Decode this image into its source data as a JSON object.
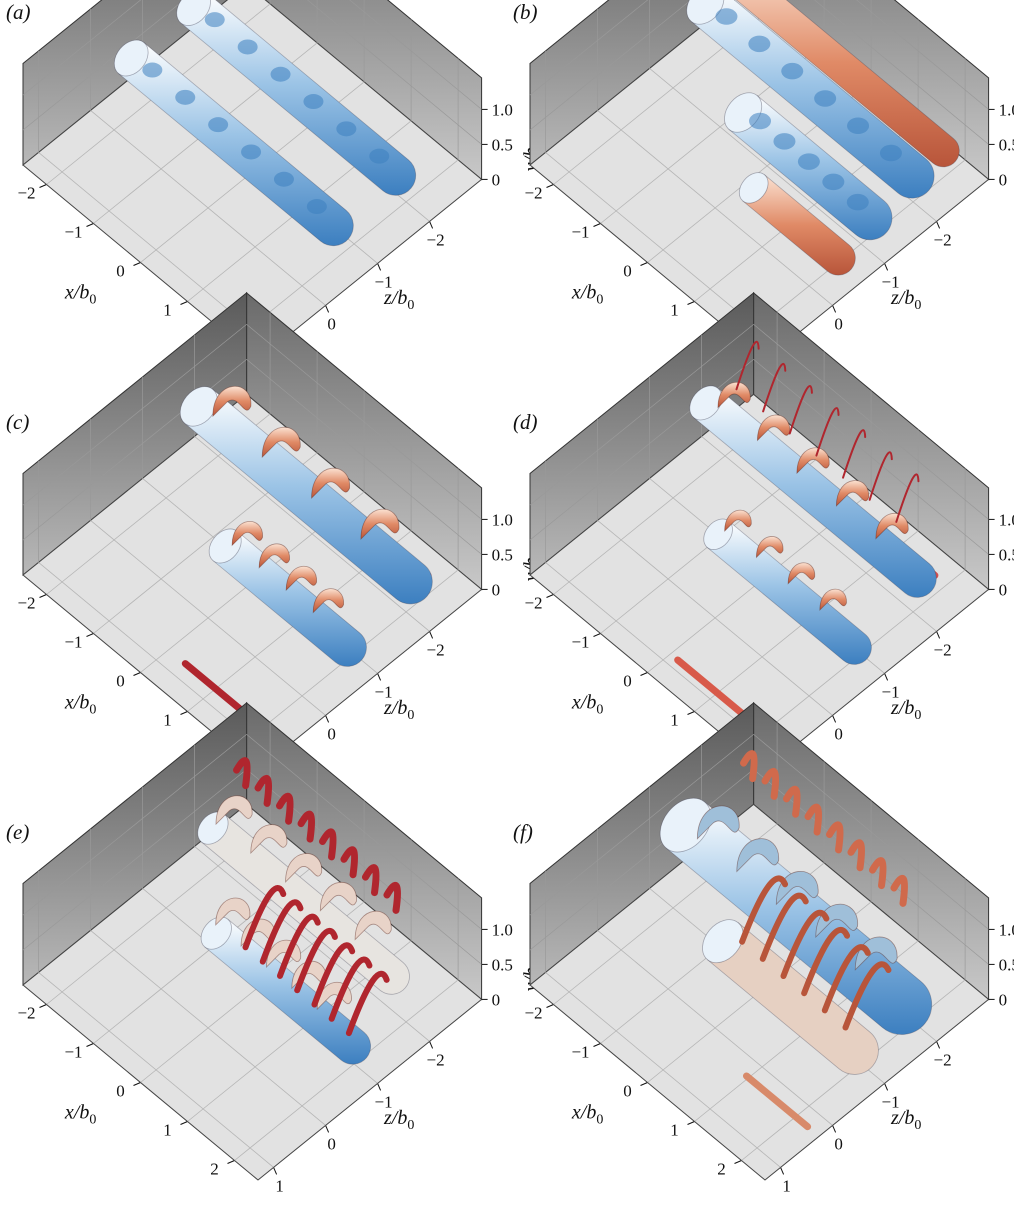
{
  "panels": [
    {
      "label": "(a)"
    },
    {
      "label": "(b)"
    },
    {
      "label": "(c)"
    },
    {
      "label": "(d)"
    },
    {
      "label": "(e)"
    },
    {
      "label": "(f)"
    }
  ],
  "axes": {
    "x_ticks": [
      "−2",
      "−1",
      "0",
      "1",
      "2"
    ],
    "z_ticks": [
      "−2",
      "−1",
      "0",
      "1"
    ],
    "y_ticks": [
      "1.0",
      "0.5",
      "0"
    ],
    "x_label": "x/b",
    "z_label": "z/b",
    "y_label": "y/b",
    "subscript": "0"
  },
  "colors": {
    "cold": "#3c7fc0",
    "warm": "#e08a66",
    "dark_red": "#b0262e",
    "wall": "#7a7a7a",
    "floor": "#e2e2e2"
  }
}
